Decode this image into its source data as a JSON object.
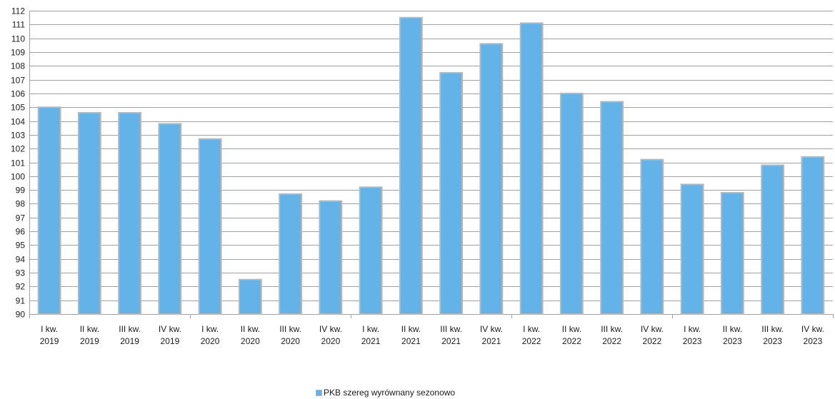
{
  "chart_data": {
    "type": "bar",
    "categories": [
      [
        "I kw.",
        "2019"
      ],
      [
        "II kw.",
        "2019"
      ],
      [
        "III kw.",
        "2019"
      ],
      [
        "IV kw.",
        "2019"
      ],
      [
        "I kw.",
        "2020"
      ],
      [
        "II kw.",
        "2020"
      ],
      [
        "III kw.",
        "2020"
      ],
      [
        "IV kw.",
        "2020"
      ],
      [
        "I kw.",
        "2021"
      ],
      [
        "II kw.",
        "2021"
      ],
      [
        "III kw.",
        "2021"
      ],
      [
        "IV kw.",
        "2021"
      ],
      [
        "I kw.",
        "2022"
      ],
      [
        "II kw.",
        "2022"
      ],
      [
        "III kw.",
        "2022"
      ],
      [
        "IV kw.",
        "2022"
      ],
      [
        "I kw.",
        "2023"
      ],
      [
        "II kw.",
        "2023"
      ],
      [
        "III kw.",
        "2023"
      ],
      [
        "IV kw.",
        "2023"
      ]
    ],
    "series": [
      {
        "name": "PKB szereg wyrównany sezonowo",
        "values": [
          105.0,
          104.6,
          104.6,
          103.8,
          102.7,
          92.5,
          98.7,
          98.2,
          99.2,
          111.5,
          107.5,
          109.6,
          111.1,
          106.0,
          105.4,
          101.2,
          99.4,
          98.8,
          100.8,
          101.4
        ]
      }
    ],
    "ylim": [
      90,
      112
    ],
    "ytick_step": 1,
    "grid": true,
    "legend_position": "bottom",
    "bar_color": "#63b3e8",
    "bar_border_color": "#b8b8b8",
    "grid_color": "#a0a0a0"
  }
}
